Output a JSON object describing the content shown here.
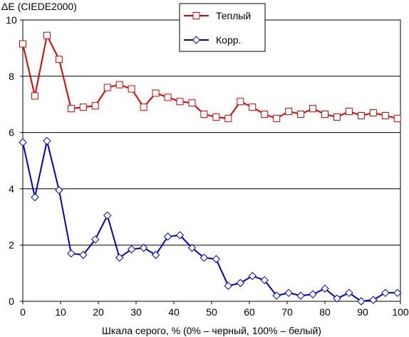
{
  "chart_data": {
    "type": "line",
    "ylabel": "ΔE (CIEDE2000)",
    "xlabel": "Шкала серого, % (0% – черный, 100% – белый)",
    "xlim": [
      0,
      100
    ],
    "ylim": [
      0,
      10
    ],
    "xticks": [
      0,
      10,
      20,
      30,
      40,
      50,
      60,
      70,
      80,
      90,
      100
    ],
    "yticks": [
      0,
      2,
      4,
      6,
      8,
      10
    ],
    "grid": "horizontal",
    "legend_position": "top-center",
    "x": [
      0,
      3.2,
      6.4,
      9.6,
      12.8,
      16,
      19.2,
      22.4,
      25.6,
      28.8,
      32,
      35.2,
      38.4,
      41.6,
      44.8,
      48,
      51.2,
      54.4,
      57.6,
      60.8,
      64,
      67.2,
      70.4,
      73.6,
      76.8,
      80,
      83.2,
      86.4,
      89.6,
      92.8,
      96,
      99.2
    ],
    "series": [
      {
        "name": "Теплый",
        "color": "#e00000",
        "marker": "square",
        "values": [
          9.15,
          7.3,
          9.45,
          8.6,
          6.85,
          6.9,
          6.95,
          7.6,
          7.7,
          7.55,
          6.9,
          7.4,
          7.25,
          7.1,
          7.05,
          6.65,
          6.55,
          6.5,
          7.1,
          6.9,
          6.65,
          6.5,
          6.75,
          6.65,
          6.85,
          6.65,
          6.55,
          6.75,
          6.6,
          6.7,
          6.6,
          6.5
        ]
      },
      {
        "name": "Корр.",
        "color": "#0000c8",
        "marker": "diamond",
        "values": [
          5.65,
          3.7,
          5.7,
          3.95,
          1.7,
          1.65,
          2.2,
          3.05,
          1.55,
          1.85,
          1.9,
          1.65,
          2.3,
          2.35,
          1.9,
          1.55,
          1.5,
          0.55,
          0.65,
          0.9,
          0.75,
          0.2,
          0.3,
          0.2,
          0.25,
          0.45,
          0.1,
          0.3,
          0.0,
          0.05,
          0.3,
          0.3
        ]
      }
    ]
  }
}
